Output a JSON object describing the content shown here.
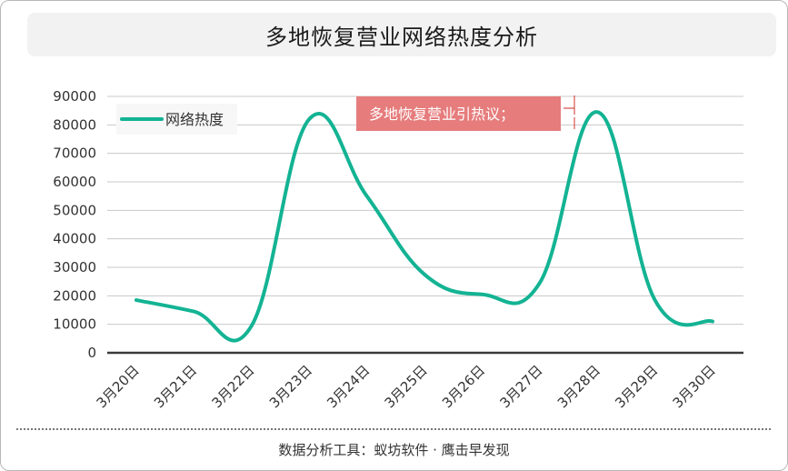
{
  "header": {
    "title": "多地恢复营业网络热度分析"
  },
  "footer": {
    "text": "数据分析工具：蚁坊软件 · 鹰击早发现"
  },
  "annotation": {
    "text": "多地恢复营业引热议；"
  },
  "colors": {
    "line": "#13b393",
    "annotation_bg": "#e67c7c",
    "annotation_bracket": "#d9534f"
  },
  "chart_data": {
    "type": "line",
    "title": "多地恢复营业网络热度分析",
    "xlabel": "",
    "ylabel": "",
    "categories": [
      "3月20日",
      "3月21日",
      "3月22日",
      "3月23日",
      "3月24日",
      "3月25日",
      "3月26日",
      "3月27日",
      "3月28日",
      "3月29日",
      "3月30日"
    ],
    "series": [
      {
        "name": "网络热度",
        "values": [
          18500,
          14500,
          9500,
          82000,
          55000,
          27500,
          20500,
          24500,
          84500,
          18500,
          11000
        ]
      }
    ],
    "ylim": [
      0,
      90000
    ],
    "yticks": [
      0,
      10000,
      20000,
      30000,
      40000,
      50000,
      60000,
      70000,
      80000,
      90000
    ],
    "grid": true,
    "legend": "top-left",
    "annotations": [
      {
        "text": "多地恢复营业引热议；",
        "category": "3月28日"
      }
    ]
  }
}
